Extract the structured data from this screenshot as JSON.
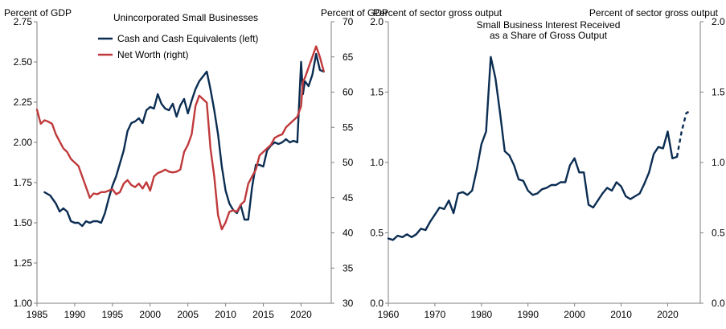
{
  "colors": {
    "navy": "#0b2d52",
    "red": "#c0393b",
    "axis": "#7f7f7f"
  },
  "chart_data": [
    {
      "type": "line",
      "title": "Unincorporated  Small Businesses",
      "left_axis_title": "Percent of GDP",
      "right_axis_title": "Percent of GDP",
      "xlim": [
        1985,
        2024
      ],
      "ylim_left": [
        1.0,
        2.75
      ],
      "ylim_right": [
        30,
        70
      ],
      "x_ticks": [
        "1985",
        "1990",
        "1995",
        "2000",
        "2005",
        "2010",
        "2015",
        "2020"
      ],
      "y_left_ticks": [
        "1.00",
        "1.25",
        "1.50",
        "1.75",
        "2.00",
        "2.25",
        "2.50",
        "2.75"
      ],
      "y_right_ticks": [
        "30",
        "35",
        "40",
        "45",
        "50",
        "55",
        "60",
        "65",
        "70"
      ],
      "legend": [
        {
          "label": "Cash and Cash Equivalents (left)",
          "color": "#0b2d52"
        },
        {
          "label": "Net Worth (right)",
          "color": "#c0393b"
        }
      ],
      "series": [
        {
          "name": "Cash and Cash Equivalents (left)",
          "axis": "left",
          "color": "#0b2d52",
          "x": [
            1986,
            1986.75,
            1987.5,
            1988,
            1988.5,
            1989,
            1989.5,
            1990,
            1990.5,
            1991,
            1991.5,
            1992,
            1992.5,
            1993,
            1993.5,
            1994,
            1994.5,
            1995,
            1995.5,
            1996,
            1996.5,
            1997,
            1997.5,
            1998,
            1998.5,
            1999,
            1999.5,
            2000,
            2000.5,
            2001,
            2001.5,
            2002,
            2002.5,
            2003,
            2003.5,
            2004,
            2004.5,
            2005,
            2005.5,
            2006,
            2006.5,
            2007,
            2007.5,
            2008,
            2008.5,
            2009,
            2009.5,
            2010,
            2010.5,
            2011,
            2011.5,
            2012,
            2012.5,
            2013,
            2013.5,
            2014,
            2014.5,
            2015,
            2015.5,
            2016,
            2016.5,
            2017,
            2017.5,
            2018,
            2018.5,
            2019,
            2019.5,
            2020,
            2020.25,
            2020.5,
            2021,
            2021.5,
            2022,
            2022.5,
            2023
          ],
          "values": [
            1.69,
            1.67,
            1.62,
            1.57,
            1.59,
            1.57,
            1.51,
            1.5,
            1.5,
            1.48,
            1.51,
            1.5,
            1.51,
            1.51,
            1.5,
            1.56,
            1.65,
            1.73,
            1.79,
            1.87,
            1.95,
            2.07,
            2.12,
            2.13,
            2.15,
            2.12,
            2.2,
            2.22,
            2.21,
            2.3,
            2.24,
            2.21,
            2.2,
            2.24,
            2.16,
            2.23,
            2.27,
            2.18,
            2.26,
            2.33,
            2.38,
            2.41,
            2.44,
            2.33,
            2.2,
            2.05,
            1.85,
            1.7,
            1.62,
            1.58,
            1.56,
            1.61,
            1.52,
            1.52,
            1.72,
            1.86,
            1.86,
            1.85,
            1.95,
            1.98,
            2.0,
            1.99,
            2.0,
            2.02,
            2.0,
            2.01,
            2.0,
            2.5,
            2.3,
            2.38,
            2.35,
            2.42,
            2.55,
            2.45,
            2.44
          ]
        },
        {
          "name": "Net Worth (right)",
          "axis": "right",
          "color": "#c0393b",
          "x": [
            1985,
            1985.5,
            1986,
            1986.5,
            1987,
            1987.5,
            1988,
            1988.5,
            1989,
            1989.5,
            1990,
            1990.5,
            1991,
            1991.5,
            1992,
            1992.5,
            1993,
            1993.5,
            1994,
            1994.5,
            1995,
            1995.5,
            1996,
            1996.5,
            1997,
            1997.5,
            1998,
            1998.5,
            1999,
            1999.5,
            2000,
            2000.5,
            2001,
            2001.5,
            2002,
            2002.5,
            2003,
            2003.5,
            2004,
            2004.5,
            2005,
            2005.5,
            2006,
            2006.5,
            2007,
            2007.5,
            2008,
            2008.5,
            2009,
            2009.5,
            2010,
            2010.5,
            2011,
            2011.5,
            2012,
            2012.5,
            2013,
            2013.5,
            2014,
            2014.5,
            2015,
            2015.5,
            2016,
            2016.5,
            2017,
            2017.5,
            2018,
            2018.5,
            2019,
            2019.5,
            2020,
            2020.25,
            2020.5,
            2021,
            2021.5,
            2022,
            2022.5,
            2023
          ],
          "values": [
            57.5,
            55.5,
            56.0,
            55.8,
            55.5,
            54.0,
            53.0,
            52.0,
            51.5,
            50.5,
            50.0,
            49.5,
            48.0,
            46.5,
            45.0,
            45.6,
            45.5,
            45.8,
            45.8,
            46.0,
            46.2,
            45.5,
            45.8,
            47.0,
            47.5,
            46.8,
            46.5,
            47.0,
            46.3,
            47.2,
            46.0,
            48.0,
            48.5,
            48.7,
            49.0,
            48.7,
            48.6,
            48.7,
            49.0,
            51.5,
            52.5,
            54.0,
            58.0,
            59.5,
            59.0,
            58.5,
            52.0,
            48.0,
            42.5,
            40.5,
            41.5,
            43.0,
            43.2,
            43.0,
            44.0,
            44.5,
            47.0,
            48.0,
            49.0,
            51.0,
            51.5,
            52.0,
            52.5,
            53.5,
            53.8,
            54.0,
            55.0,
            55.5,
            56.0,
            56.5,
            58.0,
            61.5,
            62.0,
            63.5,
            65.0,
            66.5,
            65.0,
            63.0
          ]
        }
      ]
    },
    {
      "type": "line",
      "title_lines": [
        "Small Business Interest Received",
        "as a Share of Gross Output"
      ],
      "left_axis_title": "Percent of sector gross output",
      "right_axis_title": "Percent of sector gross output",
      "xlim": [
        1960,
        2027
      ],
      "ylim_left": [
        0.0,
        2.0
      ],
      "ylim_right": [
        0.0,
        2.0
      ],
      "x_ticks": [
        "1960",
        "1970",
        "1980",
        "1990",
        "2000",
        "2010",
        "2020"
      ],
      "y_left_ticks": [
        "0.0",
        "0.5",
        "1.0",
        "1.5",
        "2.0"
      ],
      "y_right_ticks": [
        "0.0",
        "0.5",
        "1.0",
        "1.5",
        "2.0"
      ],
      "series": [
        {
          "name": "Small Business Interest Received (actual)",
          "axis": "left",
          "color": "#0b2d52",
          "style": "solid",
          "x": [
            1960,
            1961,
            1962,
            1963,
            1964,
            1965,
            1966,
            1967,
            1968,
            1969,
            1970,
            1971,
            1972,
            1973,
            1974,
            1975,
            1976,
            1977,
            1978,
            1979,
            1980,
            1981,
            1982,
            1983,
            1984,
            1985,
            1986,
            1987,
            1988,
            1989,
            1990,
            1991,
            1992,
            1993,
            1994,
            1995,
            1996,
            1997,
            1998,
            1999,
            2000,
            2001,
            2002,
            2003,
            2004,
            2005,
            2006,
            2007,
            2008,
            2009,
            2010,
            2011,
            2012,
            2013,
            2014,
            2015,
            2016,
            2017,
            2018,
            2019,
            2020,
            2021,
            2022
          ],
          "values": [
            0.46,
            0.45,
            0.48,
            0.47,
            0.49,
            0.47,
            0.49,
            0.53,
            0.52,
            0.58,
            0.63,
            0.68,
            0.67,
            0.73,
            0.64,
            0.78,
            0.79,
            0.77,
            0.8,
            0.95,
            1.13,
            1.22,
            1.75,
            1.6,
            1.35,
            1.08,
            1.05,
            0.98,
            0.88,
            0.87,
            0.8,
            0.77,
            0.78,
            0.81,
            0.82,
            0.84,
            0.84,
            0.86,
            0.86,
            0.98,
            1.03,
            0.93,
            0.93,
            0.7,
            0.68,
            0.73,
            0.78,
            0.82,
            0.8,
            0.86,
            0.83,
            0.76,
            0.74,
            0.76,
            0.78,
            0.85,
            0.93,
            1.06,
            1.11,
            1.1,
            1.22,
            1.03,
            1.04
          ]
        },
        {
          "name": "Small Business Interest Received (projected)",
          "axis": "left",
          "color": "#0b2d52",
          "style": "dashed",
          "x": [
            2022,
            2023,
            2024,
            2025
          ],
          "values": [
            1.04,
            1.22,
            1.35,
            1.37
          ]
        }
      ]
    }
  ]
}
